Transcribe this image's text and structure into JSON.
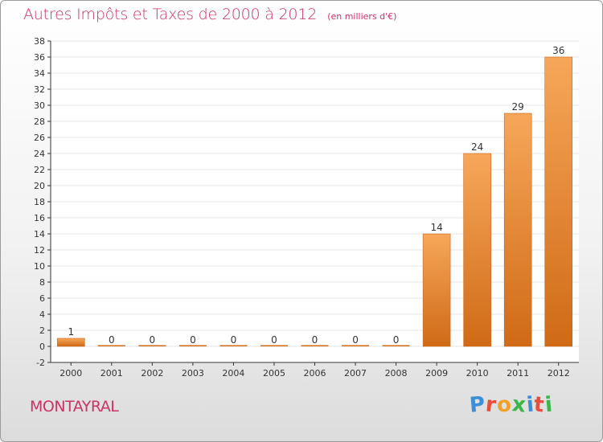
{
  "header": {
    "title": "Autres Impôts et Taxes de 2000 à 2012",
    "subtitle": "(en milliers d'€)"
  },
  "footer": {
    "commune": "MONTAYRAL",
    "logo_letters": [
      "P",
      "r",
      "o",
      "x",
      "i",
      "t",
      "i"
    ],
    "logo_colors": [
      "#3a8fd8",
      "#e84c3d",
      "#f2a128",
      "#3cb54a",
      "#3a8fd8",
      "#e84c3d",
      "#3cb54a"
    ]
  },
  "colors": {
    "title": "#cc3366",
    "bar_light": "#f7a75a",
    "bar_dark": "#cf6a16",
    "axis": "#333333",
    "grid": "#e4e4e4"
  },
  "chart_data": {
    "type": "bar",
    "categories": [
      "2000",
      "2001",
      "2002",
      "2003",
      "2004",
      "2005",
      "2006",
      "2007",
      "2008",
      "2009",
      "2010",
      "2011",
      "2012"
    ],
    "values": [
      1,
      0,
      0,
      0,
      0,
      0,
      0,
      0,
      0,
      14,
      24,
      29,
      36
    ],
    "ylim": [
      -2,
      38
    ],
    "ytick_step": 2,
    "yticks": [
      "-2",
      "0",
      "2",
      "4",
      "6",
      "8",
      "10",
      "12",
      "14",
      "16",
      "18",
      "20",
      "22",
      "24",
      "26",
      "28",
      "30",
      "32",
      "34",
      "36",
      "38"
    ],
    "data_labels": [
      "1",
      "0",
      "0",
      "0",
      "0",
      "0",
      "0",
      "0",
      "0",
      "14",
      "24",
      "29",
      "36"
    ],
    "grid": true
  }
}
